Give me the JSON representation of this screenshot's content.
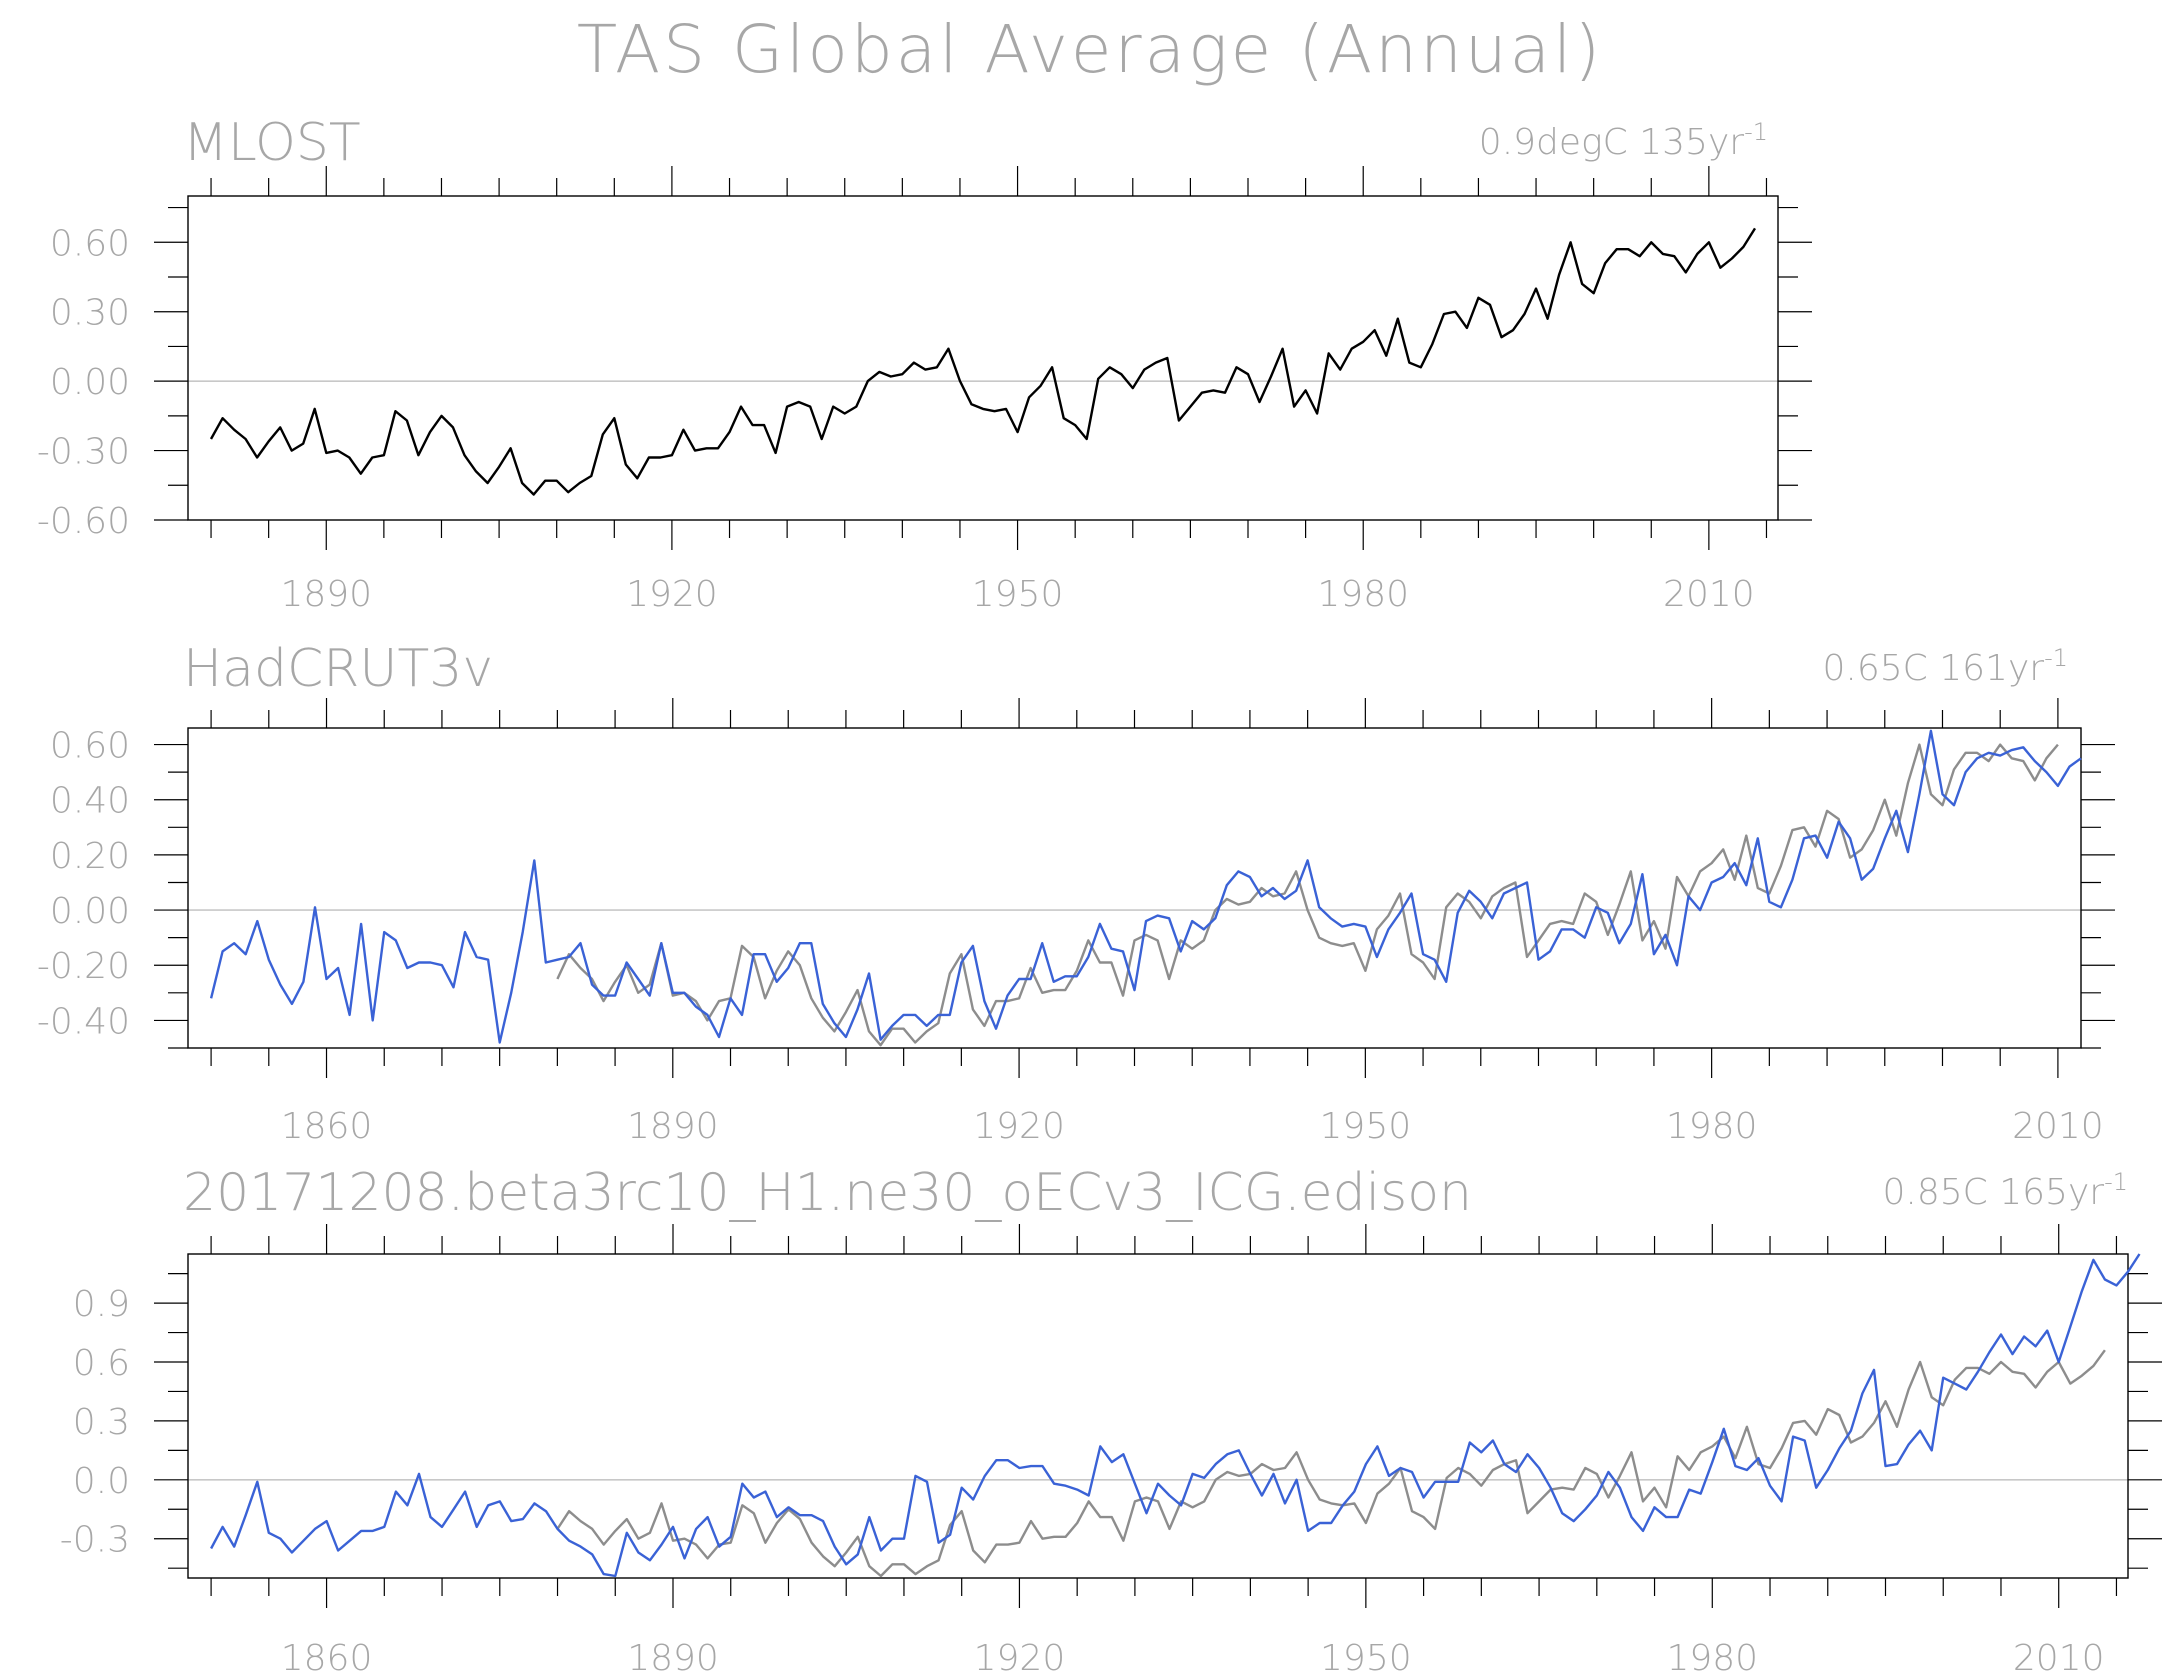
{
  "page": {
    "title": "TAS Global Average (Annual)",
    "colors": {
      "text": "#a7a7a7",
      "axis": "#000000",
      "model": "#3a62d6",
      "obs": "#8d8d8d",
      "zero": "#c8c8c8",
      "mlost": "#000000"
    }
  },
  "chart_data": [
    {
      "type": "line",
      "panel_title": "MLOST",
      "right_label": "0.9degC 135yr",
      "right_label_sup": "-1",
      "xlim": [
        1878,
        2016
      ],
      "ylim": [
        -0.6,
        0.8
      ],
      "yticks": [
        -0.6,
        -0.3,
        0.0,
        0.3,
        0.6
      ],
      "ytick_labels": [
        "-0.60",
        "-0.30",
        "0.00",
        "0.30",
        "0.60"
      ],
      "xticks": [
        1890,
        1920,
        1950,
        1980,
        2010
      ],
      "xtick_labels": [
        "1890",
        "1920",
        "1950",
        "1980",
        "2010"
      ],
      "grid": false,
      "zero_line": true,
      "series": [
        {
          "start_year": 1880,
          "color": "#000000",
          "values": [
            -0.25,
            -0.16,
            -0.21,
            -0.25,
            -0.33,
            -0.26,
            -0.2,
            -0.3,
            -0.27,
            -0.12,
            -0.31,
            -0.3,
            -0.33,
            -0.4,
            -0.33,
            -0.32,
            -0.13,
            -0.17,
            -0.32,
            -0.22,
            -0.15,
            -0.2,
            -0.32,
            -0.39,
            -0.44,
            -0.37,
            -0.29,
            -0.44,
            -0.49,
            -0.43,
            -0.43,
            -0.48,
            -0.44,
            -0.41,
            -0.23,
            -0.16,
            -0.36,
            -0.42,
            -0.33,
            -0.33,
            -0.32,
            -0.21,
            -0.3,
            -0.29,
            -0.29,
            -0.22,
            -0.11,
            -0.19,
            -0.19,
            -0.31,
            -0.11,
            -0.09,
            -0.11,
            -0.25,
            -0.11,
            -0.14,
            -0.11,
            0.0,
            0.04,
            0.02,
            0.03,
            0.08,
            0.05,
            0.06,
            0.14,
            0.0,
            -0.1,
            -0.12,
            -0.13,
            -0.12,
            -0.22,
            -0.07,
            -0.02,
            0.06,
            -0.16,
            -0.19,
            -0.25,
            0.01,
            0.06,
            0.03,
            -0.03,
            0.05,
            0.08,
            0.1,
            -0.17,
            -0.11,
            -0.05,
            -0.04,
            -0.05,
            0.06,
            0.03,
            -0.09,
            0.02,
            0.14,
            -0.11,
            -0.04,
            -0.14,
            0.12,
            0.05,
            0.14,
            0.17,
            0.22,
            0.11,
            0.27,
            0.08,
            0.06,
            0.16,
            0.29,
            0.3,
            0.23,
            0.36,
            0.33,
            0.19,
            0.22,
            0.29,
            0.4,
            0.27,
            0.46,
            0.6,
            0.42,
            0.38,
            0.51,
            0.57,
            0.57,
            0.54,
            0.6,
            0.55,
            0.54,
            0.47,
            0.55,
            0.6,
            0.49,
            0.53,
            0.58,
            0.66
          ]
        }
      ]
    },
    {
      "type": "line",
      "panel_title": "HadCRUT3v",
      "right_label": "0.65C 161yr",
      "right_label_sup": "-1",
      "xlim": [
        1848,
        2012
      ],
      "ylim": [
        -0.5,
        0.66
      ],
      "yticks": [
        -0.4,
        -0.2,
        0.0,
        0.2,
        0.4,
        0.6
      ],
      "ytick_labels": [
        "-0.40",
        "-0.20",
        "0.00",
        "0.20",
        "0.40",
        "0.60"
      ],
      "xticks": [
        1860,
        1890,
        1920,
        1950,
        1980,
        2010
      ],
      "xtick_labels": [
        "1860",
        "1890",
        "1920",
        "1950",
        "1980",
        "2010"
      ],
      "grid": false,
      "zero_line": true,
      "series": [
        {
          "start_year": 1880,
          "color": "#8d8d8d",
          "values": [
            -0.25,
            -0.16,
            -0.21,
            -0.25,
            -0.33,
            -0.26,
            -0.2,
            -0.3,
            -0.27,
            -0.12,
            -0.31,
            -0.3,
            -0.33,
            -0.4,
            -0.33,
            -0.32,
            -0.13,
            -0.17,
            -0.32,
            -0.22,
            -0.15,
            -0.2,
            -0.32,
            -0.39,
            -0.44,
            -0.37,
            -0.29,
            -0.44,
            -0.49,
            -0.43,
            -0.43,
            -0.48,
            -0.44,
            -0.41,
            -0.23,
            -0.16,
            -0.36,
            -0.42,
            -0.33,
            -0.33,
            -0.32,
            -0.21,
            -0.3,
            -0.29,
            -0.29,
            -0.22,
            -0.11,
            -0.19,
            -0.19,
            -0.31,
            -0.11,
            -0.09,
            -0.11,
            -0.25,
            -0.11,
            -0.14,
            -0.11,
            0.0,
            0.04,
            0.02,
            0.03,
            0.08,
            0.05,
            0.06,
            0.14,
            0.0,
            -0.1,
            -0.12,
            -0.13,
            -0.12,
            -0.22,
            -0.07,
            -0.02,
            0.06,
            -0.16,
            -0.19,
            -0.25,
            0.01,
            0.06,
            0.03,
            -0.03,
            0.05,
            0.08,
            0.1,
            -0.17,
            -0.11,
            -0.05,
            -0.04,
            -0.05,
            0.06,
            0.03,
            -0.09,
            0.02,
            0.14,
            -0.11,
            -0.04,
            -0.14,
            0.12,
            0.05,
            0.14,
            0.17,
            0.22,
            0.11,
            0.27,
            0.08,
            0.06,
            0.16,
            0.29,
            0.3,
            0.23,
            0.36,
            0.33,
            0.19,
            0.22,
            0.29,
            0.4,
            0.27,
            0.46,
            0.6,
            0.42,
            0.38,
            0.51,
            0.57,
            0.57,
            0.54,
            0.6,
            0.55,
            0.54,
            0.47,
            0.55,
            0.6
          ]
        },
        {
          "start_year": 1850,
          "color": "#3a62d6",
          "values": [
            -0.32,
            -0.15,
            -0.12,
            -0.16,
            -0.04,
            -0.18,
            -0.27,
            -0.34,
            -0.26,
            0.01,
            -0.25,
            -0.21,
            -0.38,
            -0.05,
            -0.4,
            -0.08,
            -0.11,
            -0.21,
            -0.19,
            -0.19,
            -0.2,
            -0.28,
            -0.08,
            -0.17,
            -0.18,
            -0.48,
            -0.3,
            -0.08,
            0.18,
            -0.19,
            -0.18,
            -0.17,
            -0.12,
            -0.27,
            -0.31,
            -0.31,
            -0.19,
            -0.25,
            -0.31,
            -0.12,
            -0.3,
            -0.3,
            -0.35,
            -0.38,
            -0.46,
            -0.32,
            -0.38,
            -0.16,
            -0.16,
            -0.26,
            -0.21,
            -0.12,
            -0.12,
            -0.34,
            -0.41,
            -0.46,
            -0.36,
            -0.23,
            -0.47,
            -0.42,
            -0.38,
            -0.38,
            -0.42,
            -0.38,
            -0.38,
            -0.19,
            -0.13,
            -0.33,
            -0.43,
            -0.31,
            -0.25,
            -0.25,
            -0.12,
            -0.26,
            -0.24,
            -0.24,
            -0.17,
            -0.05,
            -0.14,
            -0.15,
            -0.29,
            -0.04,
            -0.02,
            -0.03,
            -0.15,
            -0.04,
            -0.07,
            -0.03,
            0.09,
            0.14,
            0.12,
            0.05,
            0.08,
            0.04,
            0.07,
            0.18,
            0.01,
            -0.03,
            -0.06,
            -0.05,
            -0.06,
            -0.17,
            -0.07,
            -0.01,
            0.06,
            -0.16,
            -0.18,
            -0.26,
            -0.01,
            0.07,
            0.03,
            -0.03,
            0.06,
            0.08,
            0.1,
            -0.18,
            -0.15,
            -0.07,
            -0.07,
            -0.1,
            0.01,
            -0.01,
            -0.12,
            -0.05,
            0.13,
            -0.16,
            -0.09,
            -0.2,
            0.05,
            0.0,
            0.1,
            0.12,
            0.17,
            0.09,
            0.26,
            0.03,
            0.01,
            0.11,
            0.26,
            0.27,
            0.19,
            0.32,
            0.26,
            0.11,
            0.15,
            0.26,
            0.36,
            0.21,
            0.42,
            0.65,
            0.42,
            0.38,
            0.5,
            0.55,
            0.57,
            0.56,
            0.58,
            0.59,
            0.54,
            0.5,
            0.45,
            0.52,
            0.55
          ]
        }
      ]
    },
    {
      "type": "line",
      "panel_title": "20171208.beta3rc10_H1.ne30_oECv3_ICG.edison",
      "right_label": "0.85C 165yr",
      "right_label_sup": "-1",
      "xlim": [
        1848,
        2016
      ],
      "ylim": [
        -0.5,
        1.15
      ],
      "yticks": [
        -0.3,
        0.0,
        0.3,
        0.6,
        0.9
      ],
      "ytick_labels": [
        "-0.3",
        "0.0",
        "0.3",
        "0.6",
        "0.9"
      ],
      "xticks": [
        1860,
        1890,
        1920,
        1950,
        1980,
        2010
      ],
      "xtick_labels": [
        "1860",
        "1890",
        "1920",
        "1950",
        "1980",
        "2010"
      ],
      "grid": false,
      "zero_line": true,
      "series": [
        {
          "start_year": 1880,
          "color": "#8d8d8d",
          "values": [
            -0.25,
            -0.16,
            -0.21,
            -0.25,
            -0.33,
            -0.26,
            -0.2,
            -0.3,
            -0.27,
            -0.12,
            -0.31,
            -0.3,
            -0.33,
            -0.4,
            -0.33,
            -0.32,
            -0.13,
            -0.17,
            -0.32,
            -0.22,
            -0.15,
            -0.2,
            -0.32,
            -0.39,
            -0.44,
            -0.37,
            -0.29,
            -0.44,
            -0.49,
            -0.43,
            -0.43,
            -0.48,
            -0.44,
            -0.41,
            -0.23,
            -0.16,
            -0.36,
            -0.42,
            -0.33,
            -0.33,
            -0.32,
            -0.21,
            -0.3,
            -0.29,
            -0.29,
            -0.22,
            -0.11,
            -0.19,
            -0.19,
            -0.31,
            -0.11,
            -0.09,
            -0.11,
            -0.25,
            -0.11,
            -0.14,
            -0.11,
            0.0,
            0.04,
            0.02,
            0.03,
            0.08,
            0.05,
            0.06,
            0.14,
            0.0,
            -0.1,
            -0.12,
            -0.13,
            -0.12,
            -0.22,
            -0.07,
            -0.02,
            0.06,
            -0.16,
            -0.19,
            -0.25,
            0.01,
            0.06,
            0.03,
            -0.03,
            0.05,
            0.08,
            0.1,
            -0.17,
            -0.11,
            -0.05,
            -0.04,
            -0.05,
            0.06,
            0.03,
            -0.09,
            0.02,
            0.14,
            -0.11,
            -0.04,
            -0.14,
            0.12,
            0.05,
            0.14,
            0.17,
            0.22,
            0.11,
            0.27,
            0.08,
            0.06,
            0.16,
            0.29,
            0.3,
            0.23,
            0.36,
            0.33,
            0.19,
            0.22,
            0.29,
            0.4,
            0.27,
            0.46,
            0.6,
            0.42,
            0.38,
            0.51,
            0.57,
            0.57,
            0.54,
            0.6,
            0.55,
            0.54,
            0.47,
            0.55,
            0.6,
            0.49,
            0.53,
            0.58,
            0.66
          ]
        },
        {
          "start_year": 1850,
          "color": "#3a62d6",
          "values": [
            -0.35,
            -0.24,
            -0.34,
            -0.18,
            -0.01,
            -0.27,
            -0.3,
            -0.37,
            -0.31,
            -0.25,
            -0.21,
            -0.36,
            -0.31,
            -0.26,
            -0.26,
            -0.24,
            -0.06,
            -0.13,
            0.03,
            -0.19,
            -0.24,
            -0.15,
            -0.06,
            -0.24,
            -0.13,
            -0.11,
            -0.21,
            -0.2,
            -0.12,
            -0.16,
            -0.25,
            -0.31,
            -0.34,
            -0.38,
            -0.48,
            -0.49,
            -0.27,
            -0.37,
            -0.41,
            -0.33,
            -0.24,
            -0.4,
            -0.25,
            -0.19,
            -0.34,
            -0.29,
            -0.02,
            -0.09,
            -0.06,
            -0.19,
            -0.14,
            -0.18,
            -0.18,
            -0.21,
            -0.34,
            -0.43,
            -0.38,
            -0.19,
            -0.36,
            -0.3,
            -0.3,
            0.02,
            -0.01,
            -0.32,
            -0.28,
            -0.04,
            -0.1,
            0.02,
            0.1,
            0.1,
            0.06,
            0.07,
            0.07,
            -0.02,
            -0.03,
            -0.05,
            -0.08,
            0.17,
            0.09,
            0.13,
            -0.02,
            -0.17,
            -0.02,
            -0.08,
            -0.13,
            0.03,
            0.01,
            0.08,
            0.13,
            0.15,
            0.03,
            -0.08,
            0.03,
            -0.12,
            0.0,
            -0.26,
            -0.22,
            -0.22,
            -0.13,
            -0.06,
            0.08,
            0.17,
            0.02,
            0.06,
            0.04,
            -0.09,
            -0.01,
            -0.01,
            -0.01,
            0.19,
            0.14,
            0.2,
            0.08,
            0.04,
            0.13,
            0.06,
            -0.04,
            -0.17,
            -0.21,
            -0.15,
            -0.08,
            0.04,
            -0.04,
            -0.19,
            -0.26,
            -0.14,
            -0.19,
            -0.19,
            -0.05,
            -0.07,
            0.09,
            0.26,
            0.07,
            0.05,
            0.11,
            -0.03,
            -0.11,
            0.22,
            0.2,
            -0.04,
            0.05,
            0.16,
            0.25,
            0.44,
            0.56,
            0.07,
            0.08,
            0.18,
            0.25,
            0.15,
            0.52,
            0.49,
            0.46,
            0.55,
            0.65,
            0.74,
            0.64,
            0.73,
            0.68,
            0.76,
            0.6,
            0.78,
            0.96,
            1.12,
            1.02,
            0.99,
            1.06,
            1.15
          ]
        }
      ]
    }
  ]
}
